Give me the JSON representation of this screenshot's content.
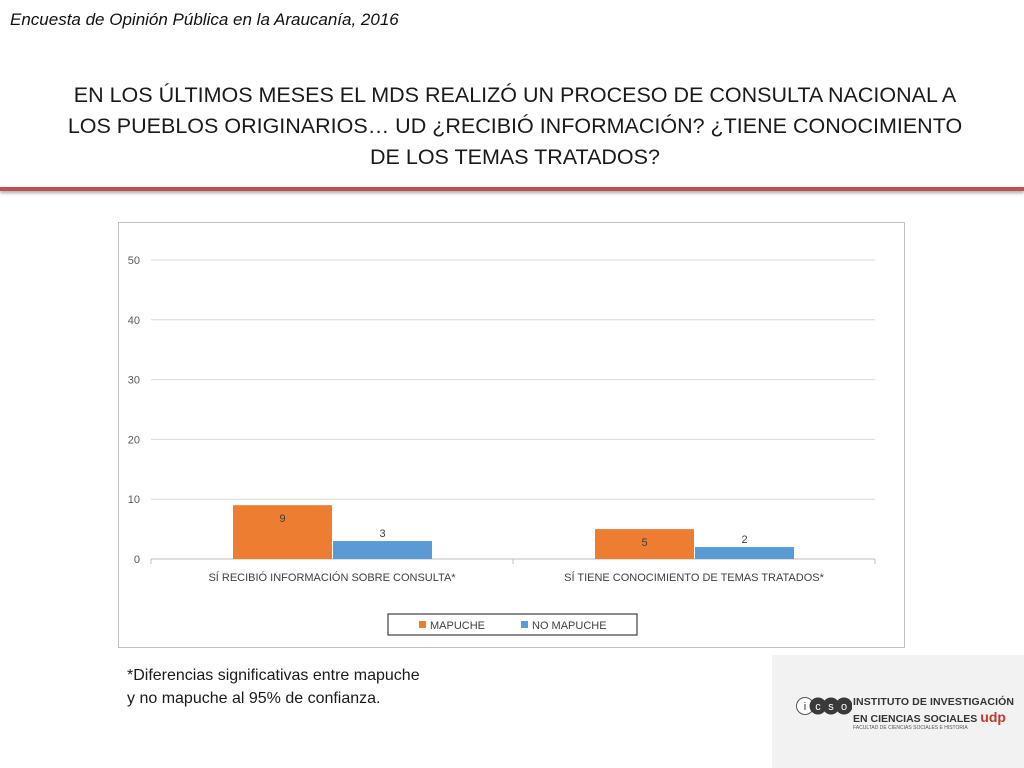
{
  "header": {
    "text": "Encuesta de Opinión Pública en la Araucanía, 2016"
  },
  "slide": {
    "title_lines": [
      "EN LOS ÚLTIMOS MESES EL MDS REALIZÓ UN PROCESO DE CONSULTA NACIONAL A",
      "LOS PUEBLOS ORIGINARIOS… UD ¿RECIBIÓ INFORMACIÓN? ¿TIENE CONOCIMIENTO",
      "DE LOS TEMAS TRATADOS?"
    ]
  },
  "colors": {
    "accent": "#c0504d",
    "mapuche": "#ed7d31",
    "no_mapuche": "#5b9bd5"
  },
  "chart_data": {
    "type": "bar",
    "categories": [
      "SÍ RECIBIÓ INFORMACIÓN SOBRE CONSULTA*",
      "SÍ TIENE CONOCIMIENTO DE TEMAS TRATADOS*"
    ],
    "series": [
      {
        "name": "MAPUCHE",
        "values": [
          9,
          5
        ],
        "labels": [
          "9",
          "5"
        ],
        "color": "#ed7d31"
      },
      {
        "name": "NO MAPUCHE",
        "values": [
          3,
          2
        ],
        "labels": [
          "3",
          "2"
        ],
        "color": "#5b9bd5"
      }
    ],
    "ylim": [
      0,
      50
    ],
    "yticks": [
      0,
      10,
      20,
      30,
      40,
      50
    ],
    "ytick_labels": [
      "0",
      "10",
      "20",
      "30",
      "40",
      "50"
    ],
    "grid": true,
    "legend": "bottom"
  },
  "footnote": {
    "lines": [
      "*Diferencias significativas entre mapuche",
      "y no mapuche al 95% de confianza."
    ]
  },
  "logo": {
    "letters": [
      "i",
      "c",
      "s",
      "o"
    ],
    "line1": "INSTITUTO DE INVESTIGACIÓN",
    "line2": "EN CIENCIAS SOCIALES",
    "brand": "udp",
    "line3": "FACULTAD DE CIENCIAS SOCIALES E HISTORIA"
  }
}
